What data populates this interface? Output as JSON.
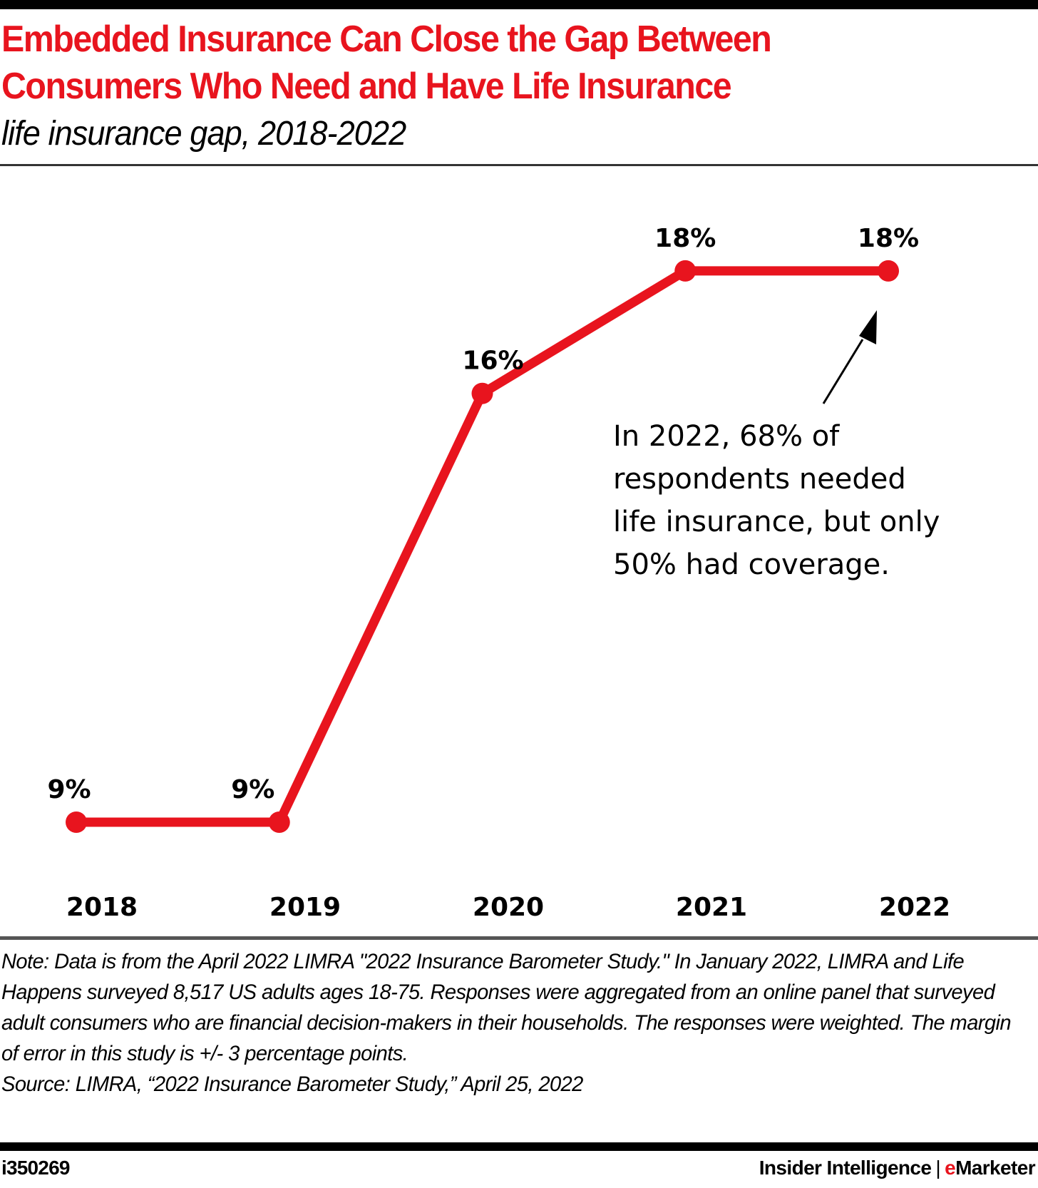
{
  "header": {
    "title": "Embedded Insurance Can Close the Gap Between Consumers Who Need and Have Life Insurance",
    "subtitle": "life insurance gap, 2018-2022"
  },
  "colors": {
    "accent": "#e8141e",
    "text": "#000000",
    "rule": "#333333"
  },
  "chart_data": {
    "type": "line",
    "title": "Embedded Insurance Can Close the Gap Between Consumers Who Need and Have Life Insurance",
    "subtitle": "life insurance gap, 2018-2022",
    "categories": [
      "2018",
      "2019",
      "2020",
      "2021",
      "2022"
    ],
    "series": [
      {
        "name": "life insurance gap",
        "values": [
          9,
          9,
          16,
          18,
          18
        ],
        "labels": [
          "9%",
          "9%",
          "16%",
          "18%",
          "18%"
        ],
        "color": "#e8141e"
      }
    ],
    "xlabel": "",
    "ylabel": "",
    "unit": "%",
    "grid": false,
    "legend": "none",
    "annotation": {
      "text": "In 2022, 68% of\nrespondents needed\nlife insurance, but only\n50% had coverage.",
      "points_to": "2022"
    }
  },
  "footer": {
    "note": "Note: Data is from the April 2022 LIMRA \"2022 Insurance Barometer Study.\" In January 2022, LIMRA and Life Happens surveyed 8,517 US adults ages 18-75. Responses were aggregated from an online panel that surveyed adult consumers who are financial decision-makers in their households. The responses were weighted. The margin of error in this study is +/- 3 percentage points.",
    "source": "Source:  LIMRA, “2022 Insurance Barometer Study,” April 25, 2022",
    "chart_id": "i350269",
    "brand_primary": "Insider Intelligence",
    "brand_separator": "|",
    "brand_accent_letter": "e",
    "brand_secondary_rest": "Marketer"
  }
}
